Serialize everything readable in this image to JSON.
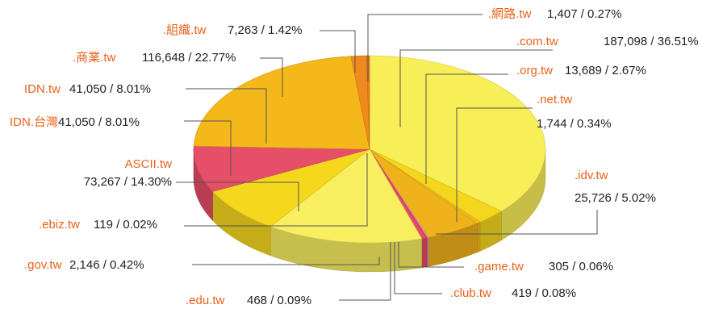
{
  "chart_data": {
    "type": "pie",
    "title": "",
    "style": "3d",
    "slices": [
      {
        "label": ".com.tw",
        "value": 187098,
        "value_text": "187,098",
        "percent": 36.51,
        "percent_text": "36.51%",
        "color": "#f7ee58"
      },
      {
        "label": ".org.tw",
        "value": 13689,
        "value_text": "13,689",
        "percent": 2.67,
        "percent_text": "2.67%",
        "color": "#f5d61e"
      },
      {
        "label": ".net.tw",
        "value": 1744,
        "value_text": "1,744",
        "percent": 0.34,
        "percent_text": "0.34%",
        "color": "#f3bd1a"
      },
      {
        "label": ".idv.tw",
        "value": 25726,
        "value_text": "25,726",
        "percent": 5.02,
        "percent_text": "5.02%",
        "color": "#f0b21a"
      },
      {
        "label": ".game.tw",
        "value": 305,
        "value_text": "305",
        "percent": 0.06,
        "percent_text": "0.06%",
        "color": "#e8a0b8"
      },
      {
        "label": ".club.tw",
        "value": 419,
        "value_text": "419",
        "percent": 0.08,
        "percent_text": "0.08%",
        "color": "#f2b6c8"
      },
      {
        "label": ".edu.tw",
        "value": 468,
        "value_text": "468",
        "percent": 0.09,
        "percent_text": "0.09%",
        "color": "#e04a70"
      },
      {
        "label": ".gov.tw",
        "value": 2146,
        "value_text": "2,146",
        "percent": 0.42,
        "percent_text": "0.42%",
        "color": "#e84a66"
      },
      {
        "label": ".ebiz.tw",
        "value": 119,
        "value_text": "119",
        "percent": 0.02,
        "percent_text": "0.02%",
        "color": "#f7ee58"
      },
      {
        "label": "ASCII.tw",
        "value": 73267,
        "value_text": "73,267",
        "percent": 14.3,
        "percent_text": "14.30%",
        "color": "#f8ef60"
      },
      {
        "label": "IDN.台灣",
        "value": 41050,
        "value_text": "41,050",
        "percent": 8.01,
        "percent_text": "8.01%",
        "color": "#f5d81e"
      },
      {
        "label": "IDN.tw",
        "value": 41050,
        "value_text": "41,050",
        "percent": 8.01,
        "percent_text": "8.01%",
        "color": "#e64f68"
      },
      {
        "label": ".商業.tw",
        "value": 116648,
        "value_text": "116,648",
        "percent": 22.77,
        "percent_text": "22.77%",
        "color": "#f4b81a"
      },
      {
        "label": ".組織.tw",
        "value": 7263,
        "value_text": "7,263",
        "percent": 1.42,
        "percent_text": "1.42%",
        "color": "#f08a1e"
      },
      {
        "label": ".網路.tw",
        "value": 1407,
        "value_text": "1,407",
        "percent": 0.27,
        "percent_text": "0.27%",
        "color": "#ee7a1e"
      }
    ]
  }
}
